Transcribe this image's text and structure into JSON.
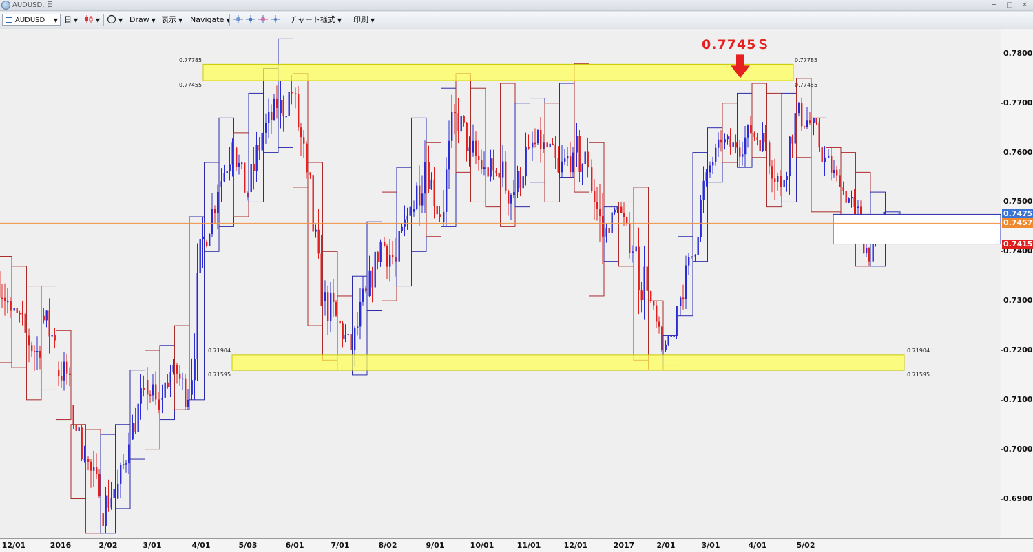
{
  "window": {
    "title": "AUDUSD, 日",
    "minimize": "─",
    "maximize": "□",
    "close": "✕"
  },
  "toolbar": {
    "symbol": "AUDUSD",
    "timeframe": "日",
    "draw": "Draw",
    "display": "表示",
    "navigate": "Navigate",
    "chart_style": "チャート様式",
    "print": "印刷",
    "caret": "▼"
  },
  "colors": {
    "chart_bg": "#efefef",
    "up_candle": "#2b2bd6",
    "down_candle": "#e01f1f",
    "up_box": "#2b2baa",
    "down_box": "#aa2b2b",
    "zone_fill": "#ffff55",
    "current_price_line": "#f09040",
    "annotation": "#e62020"
  },
  "annotation": {
    "text": "0.7745Ｓ",
    "icon": "down-arrow-icon"
  },
  "chart_data": {
    "type": "candlestick",
    "symbol": "AUDUSD",
    "timeframe": "日",
    "y_axis": {
      "min": 0.682,
      "max": 0.785,
      "ticks": [
        "0.7800[",
        "0.7700[",
        "0.7600[",
        "0.7500[",
        "0.7400[",
        "0.7300[",
        "0.7200[",
        "0.7100[",
        "0.7000[",
        "0.6900["
      ]
    },
    "x_axis": {
      "ticks": [
        "12/01",
        "2016",
        "2/02",
        "3/01",
        "4/01",
        "5/03",
        "6/01",
        "7/01",
        "8/02",
        "9/01",
        "10/01",
        "11/01",
        "12/01",
        "2017",
        "2/01",
        "3/01",
        "4/01",
        "5/02"
      ]
    },
    "resistance_zone": {
      "upper": 0.77785,
      "lower": 0.77455,
      "upper_label": "0.77785",
      "lower_label": "0.77455"
    },
    "support_zone": {
      "upper": 0.71904,
      "lower": 0.71595,
      "upper_label": "0.71904",
      "lower_label": "0.71595"
    },
    "price_tags": [
      {
        "label": "0.7475[",
        "value": 0.7475,
        "color": "#3b74d4"
      },
      {
        "label": "0.7457[",
        "value": 0.7457,
        "color": "#f08a30"
      },
      {
        "label": "0.7415[",
        "value": 0.7415,
        "color": "#e01f1f"
      }
    ],
    "current_price": 0.7457,
    "annotated_high": 0.7745,
    "weekly_boxes": [
      [
        0.739,
        0.736,
        0.728,
        0.7175
      ],
      [
        0.737,
        0.728,
        0.7235,
        0.7165
      ],
      [
        0.733,
        0.723,
        0.7185,
        0.71
      ],
      [
        0.733,
        0.727,
        0.722,
        0.712
      ],
      [
        0.724,
        0.716,
        0.715,
        0.706
      ],
      [
        0.705,
        0.709,
        0.698,
        0.69
      ],
      [
        0.704,
        0.698,
        0.6905,
        0.683
      ],
      [
        0.703,
        0.687,
        0.692,
        0.683
      ],
      [
        0.705,
        0.69,
        0.701,
        0.688
      ],
      [
        0.716,
        0.702,
        0.712,
        0.698
      ],
      [
        0.72,
        0.714,
        0.708,
        0.7
      ],
      [
        0.721,
        0.71,
        0.717,
        0.706
      ],
      [
        0.725,
        0.717,
        0.71,
        0.708
      ],
      [
        0.747,
        0.711,
        0.743,
        0.71
      ],
      [
        0.758,
        0.742,
        0.752,
        0.74
      ],
      [
        0.767,
        0.753,
        0.762,
        0.745
      ],
      [
        0.764,
        0.761,
        0.751,
        0.747
      ],
      [
        0.772,
        0.752,
        0.764,
        0.75
      ],
      [
        0.777,
        0.764,
        0.769,
        0.76
      ],
      [
        0.783,
        0.768,
        0.772,
        0.761
      ],
      [
        0.776,
        0.772,
        0.756,
        0.753
      ],
      [
        0.758,
        0.756,
        0.729,
        0.725
      ],
      [
        0.74,
        0.73,
        0.727,
        0.718
      ],
      [
        0.731,
        0.726,
        0.72,
        0.716
      ],
      [
        0.735,
        0.72,
        0.732,
        0.715
      ],
      [
        0.746,
        0.731,
        0.742,
        0.728
      ],
      [
        0.752,
        0.742,
        0.738,
        0.73
      ],
      [
        0.757,
        0.738,
        0.749,
        0.733
      ],
      [
        0.767,
        0.748,
        0.758,
        0.74
      ],
      [
        0.762,
        0.758,
        0.747,
        0.743
      ],
      [
        0.773,
        0.746,
        0.768,
        0.745
      ],
      [
        0.776,
        0.768,
        0.761,
        0.756
      ],
      [
        0.773,
        0.76,
        0.757,
        0.75
      ],
      [
        0.766,
        0.757,
        0.755,
        0.749
      ],
      [
        0.774,
        0.755,
        0.752,
        0.745
      ],
      [
        0.77,
        0.752,
        0.761,
        0.749
      ],
      [
        0.771,
        0.761,
        0.762,
        0.754
      ],
      [
        0.77,
        0.762,
        0.756,
        0.75
      ],
      [
        0.774,
        0.756,
        0.76,
        0.755
      ],
      [
        0.778,
        0.76,
        0.757,
        0.752
      ],
      [
        0.762,
        0.757,
        0.743,
        0.731
      ],
      [
        0.749,
        0.743,
        0.749,
        0.738
      ],
      [
        0.75,
        0.749,
        0.74,
        0.737
      ],
      [
        0.753,
        0.74,
        0.732,
        0.718
      ],
      [
        0.73,
        0.732,
        0.72,
        0.716
      ],
      [
        0.723,
        0.72,
        0.729,
        0.717
      ],
      [
        0.743,
        0.729,
        0.739,
        0.727
      ],
      [
        0.76,
        0.739,
        0.756,
        0.738
      ],
      [
        0.765,
        0.756,
        0.762,
        0.754
      ],
      [
        0.77,
        0.762,
        0.761,
        0.758
      ],
      [
        0.772,
        0.761,
        0.764,
        0.757
      ],
      [
        0.774,
        0.764,
        0.762,
        0.759
      ],
      [
        0.772,
        0.762,
        0.753,
        0.749
      ],
      [
        0.772,
        0.753,
        0.768,
        0.75
      ],
      [
        0.775,
        0.768,
        0.766,
        0.759
      ],
      [
        0.767,
        0.766,
        0.759,
        0.748
      ],
      [
        0.761,
        0.759,
        0.753,
        0.748
      ],
      [
        0.76,
        0.753,
        0.749,
        0.747
      ],
      [
        0.756,
        0.749,
        0.738,
        0.737
      ],
      [
        0.752,
        0.738,
        0.748,
        0.737
      ],
      [
        0.748,
        0.745,
        0.747,
        0.742
      ]
    ]
  }
}
